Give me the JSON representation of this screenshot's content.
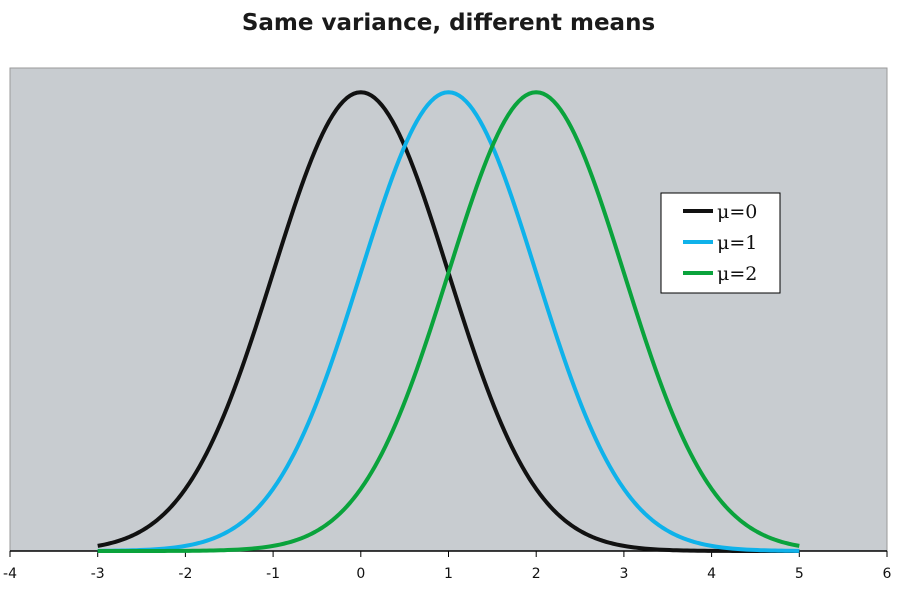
{
  "chart_data": {
    "type": "line",
    "title": "Same variance, different means",
    "xlabel": "",
    "ylabel": "",
    "xlim": [
      -4,
      6
    ],
    "ylim": [
      0,
      0.42
    ],
    "x_ticks": [
      "-4",
      "-3",
      "-2",
      "-1",
      "0",
      "1",
      "2",
      "3",
      "4",
      "5",
      "6"
    ],
    "grid": false,
    "legend_position": "right",
    "x_range": [
      -3,
      5
    ],
    "series": [
      {
        "name": "μ=0",
        "mean": 0,
        "sd": 1,
        "color": "#111111"
      },
      {
        "name": "μ=1",
        "mean": 1,
        "sd": 1,
        "color": "#0fb2ea"
      },
      {
        "name": "μ=2",
        "mean": 2,
        "sd": 1,
        "color": "#0aa33c"
      }
    ],
    "plot_background": "#c8ccd0"
  }
}
